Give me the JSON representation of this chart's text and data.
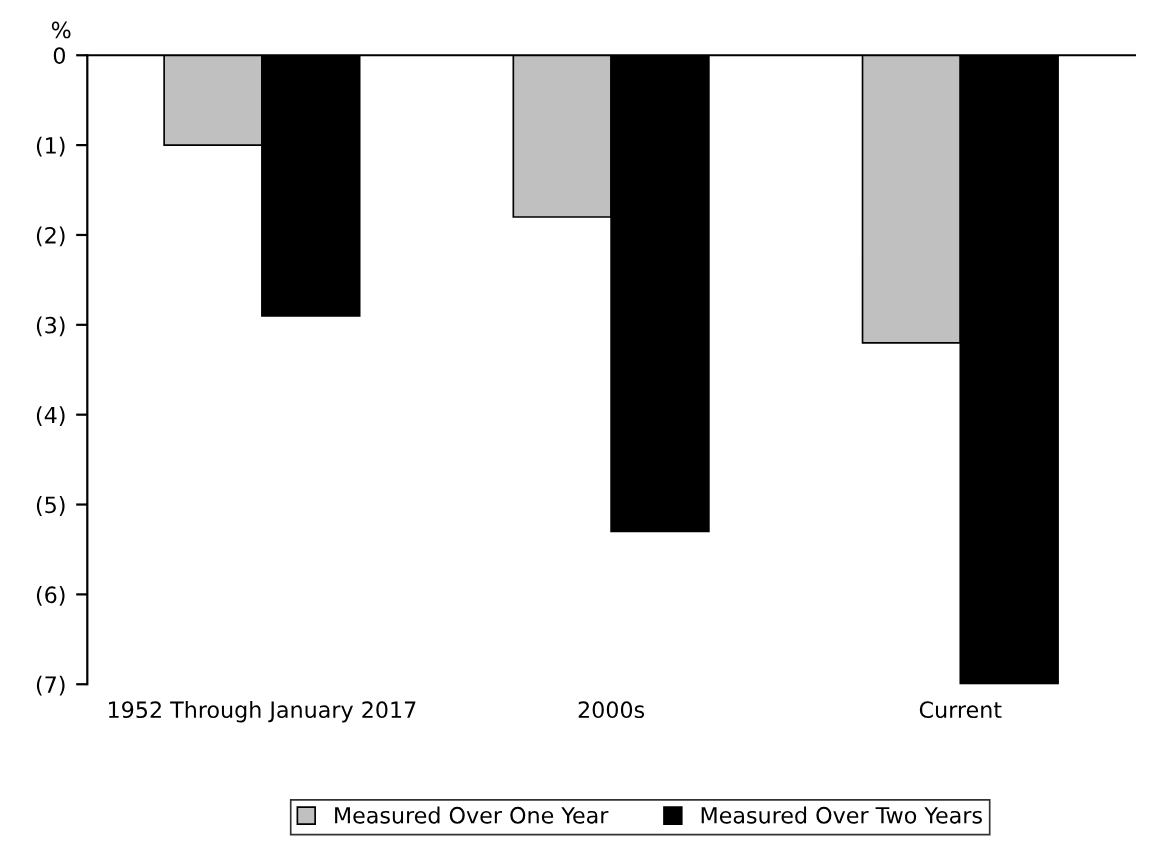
{
  "chart_data": {
    "type": "bar",
    "ylabel": "%",
    "categories": [
      "1952 Through January 2017",
      "2000s",
      "Current"
    ],
    "series": [
      {
        "name": "Measured Over One Year",
        "color": "#c0c0c0",
        "values": [
          -1.0,
          -1.8,
          -3.2
        ]
      },
      {
        "name": "Measured Over Two Years",
        "color": "#000000",
        "values": [
          -2.9,
          -5.3,
          -7.0
        ]
      }
    ],
    "ylim": [
      -7,
      0
    ],
    "yticks": [
      0,
      {
        "value": -1,
        "label": "(1)"
      },
      {
        "value": -2,
        "label": "(2)"
      },
      {
        "value": -3,
        "label": "(3)"
      },
      {
        "value": -4,
        "label": "(4)"
      },
      {
        "value": -5,
        "label": "(5)"
      },
      {
        "value": -6,
        "label": "(6)"
      },
      {
        "value": -7,
        "label": "(7)"
      }
    ],
    "grid": false,
    "legend": "bottom"
  }
}
